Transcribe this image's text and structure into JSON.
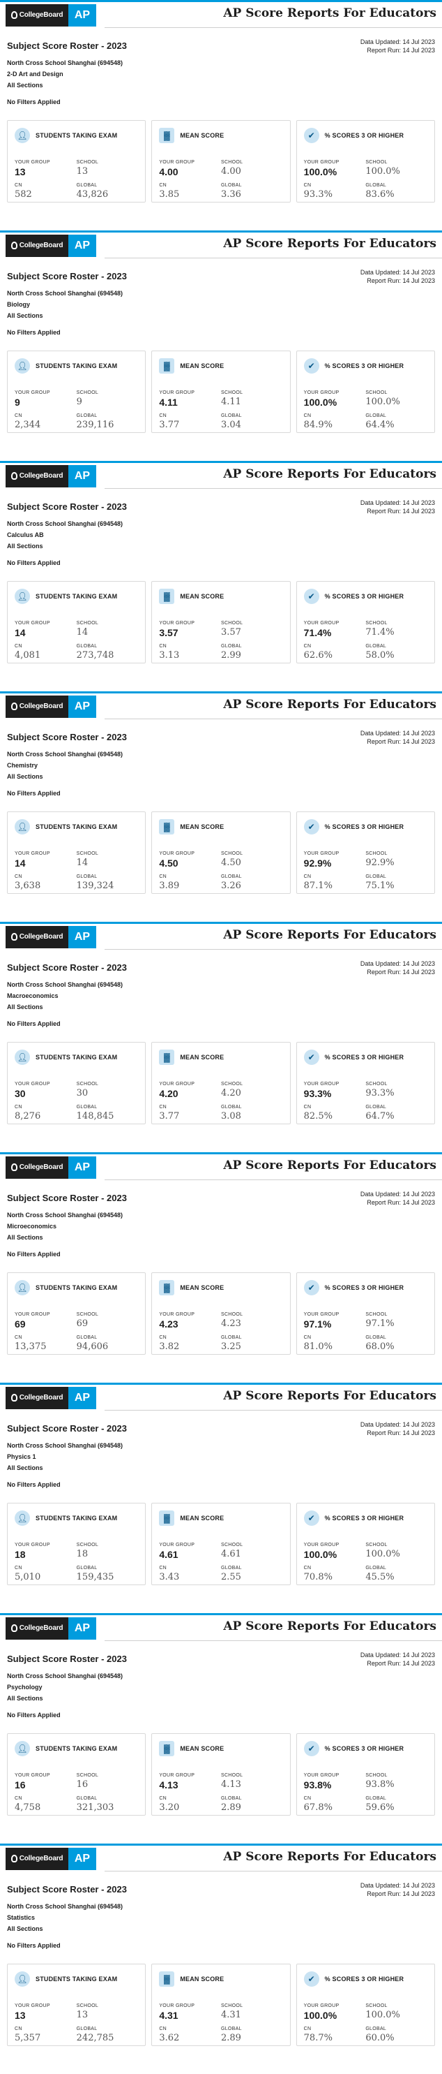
{
  "header": {
    "cb_logo": "CollegeBoard",
    "ap_logo": "AP",
    "title": "AP Score Reports For Educators"
  },
  "roster_title": "Subject Score Roster - 2023",
  "school_name": "North Cross School Shanghai (694548)",
  "sections": "All Sections",
  "filters": "No Filters Applied",
  "data_updated": "Data Updated: 14 Jul 2023",
  "report_run": "Report Run: 14 Jul 2023",
  "labels": {
    "students": "STUDENTS TAKING EXAM",
    "mean": "MEAN SCORE",
    "pct": "% SCORES 3 OR HIGHER",
    "your_group": "YOUR GROUP",
    "school": "SCHOOL",
    "cn": "CN",
    "global": "GLOBAL"
  },
  "icons": {
    "students": "user-icon",
    "mean": "chart-icon",
    "pct": "check-icon"
  },
  "colors": {
    "accent": "#009cde",
    "icon_bg": "#c9e3f3"
  },
  "reports": [
    {
      "subject": "2-D Art and Design",
      "students": {
        "your_group": "13",
        "school": "13",
        "cn": "582",
        "global": "43,826"
      },
      "mean": {
        "your_group": "4.00",
        "school": "4.00",
        "cn": "3.85",
        "global": "3.36"
      },
      "pct": {
        "your_group": "100.0%",
        "school": "100.0%",
        "cn": "93.3%",
        "global": "83.6%"
      }
    },
    {
      "subject": "Biology",
      "students": {
        "your_group": "9",
        "school": "9",
        "cn": "2,344",
        "global": "239,116"
      },
      "mean": {
        "your_group": "4.11",
        "school": "4.11",
        "cn": "3.77",
        "global": "3.04"
      },
      "pct": {
        "your_group": "100.0%",
        "school": "100.0%",
        "cn": "84.9%",
        "global": "64.4%"
      }
    },
    {
      "subject": "Calculus AB",
      "students": {
        "your_group": "14",
        "school": "14",
        "cn": "4,081",
        "global": "273,748"
      },
      "mean": {
        "your_group": "3.57",
        "school": "3.57",
        "cn": "3.13",
        "global": "2.99"
      },
      "pct": {
        "your_group": "71.4%",
        "school": "71.4%",
        "cn": "62.6%",
        "global": "58.0%"
      }
    },
    {
      "subject": "Chemistry",
      "students": {
        "your_group": "14",
        "school": "14",
        "cn": "3,638",
        "global": "139,324"
      },
      "mean": {
        "your_group": "4.50",
        "school": "4.50",
        "cn": "3.89",
        "global": "3.26"
      },
      "pct": {
        "your_group": "92.9%",
        "school": "92.9%",
        "cn": "87.1%",
        "global": "75.1%"
      }
    },
    {
      "subject": "Macroeconomics",
      "students": {
        "your_group": "30",
        "school": "30",
        "cn": "8,276",
        "global": "148,845"
      },
      "mean": {
        "your_group": "4.20",
        "school": "4.20",
        "cn": "3.77",
        "global": "3.08"
      },
      "pct": {
        "your_group": "93.3%",
        "school": "93.3%",
        "cn": "82.5%",
        "global": "64.7%"
      }
    },
    {
      "subject": "Microeconomics",
      "students": {
        "your_group": "69",
        "school": "69",
        "cn": "13,375",
        "global": "94,606"
      },
      "mean": {
        "your_group": "4.23",
        "school": "4.23",
        "cn": "3.82",
        "global": "3.25"
      },
      "pct": {
        "your_group": "97.1%",
        "school": "97.1%",
        "cn": "81.0%",
        "global": "68.0%"
      }
    },
    {
      "subject": "Physics 1",
      "students": {
        "your_group": "18",
        "school": "18",
        "cn": "5,010",
        "global": "159,435"
      },
      "mean": {
        "your_group": "4.61",
        "school": "4.61",
        "cn": "3.43",
        "global": "2.55"
      },
      "pct": {
        "your_group": "100.0%",
        "school": "100.0%",
        "cn": "70.8%",
        "global": "45.5%"
      }
    },
    {
      "subject": "Psychology",
      "students": {
        "your_group": "16",
        "school": "16",
        "cn": "4,758",
        "global": "321,303"
      },
      "mean": {
        "your_group": "4.13",
        "school": "4.13",
        "cn": "3.20",
        "global": "2.89"
      },
      "pct": {
        "your_group": "93.8%",
        "school": "93.8%",
        "cn": "67.8%",
        "global": "59.6%"
      }
    },
    {
      "subject": "Statistics",
      "students": {
        "your_group": "13",
        "school": "13",
        "cn": "5,357",
        "global": "242,785"
      },
      "mean": {
        "your_group": "4.31",
        "school": "4.31",
        "cn": "3.62",
        "global": "2.89"
      },
      "pct": {
        "your_group": "100.0%",
        "school": "100.0%",
        "cn": "78.7%",
        "global": "60.0%"
      }
    }
  ]
}
